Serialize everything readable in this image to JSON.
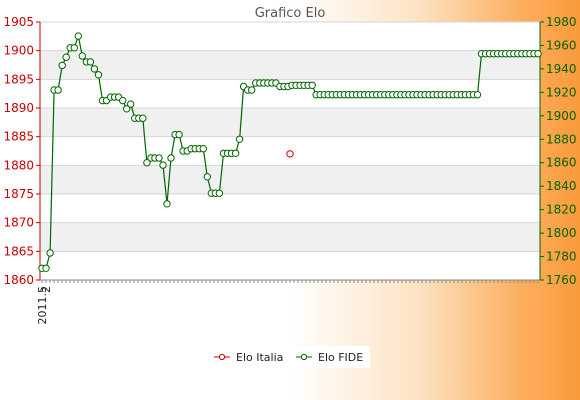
{
  "chart_data": {
    "type": "line",
    "title": "Grafico Elo",
    "y_left": {
      "min": 1860,
      "max": 1905,
      "ticks": [
        1860,
        1865,
        1870,
        1875,
        1880,
        1885,
        1890,
        1895,
        1900,
        1905
      ]
    },
    "y_right": {
      "min": 1760,
      "max": 1980,
      "ticks": [
        1760,
        1780,
        1800,
        1820,
        1840,
        1860,
        1880,
        1900,
        1920,
        1940,
        1960,
        1980
      ]
    },
    "grid": true,
    "x_tick_count": 125,
    "x_labels_visible": [
      "2011.5",
      "2"
    ],
    "legend_position": "bottom",
    "series": [
      {
        "name": "Elo Italia",
        "axis": "left",
        "color": "#cc0000",
        "values": [
          1882
        ]
      },
      {
        "name": "Elo FIDE",
        "axis": "right",
        "color": "#006600",
        "values": [
          1770,
          1770,
          1783,
          1922,
          1922,
          1943,
          1950,
          1958,
          1958,
          1968,
          1951,
          1946,
          1946,
          1940,
          1935,
          1913,
          1913,
          1916,
          1916,
          1916,
          1913,
          1906,
          1910,
          1898,
          1898,
          1898,
          1860,
          1864,
          1864,
          1864,
          1858,
          1825,
          1864,
          1884,
          1884,
          1870,
          1870,
          1872,
          1872,
          1872,
          1872,
          1848,
          1834,
          1834,
          1834,
          1868,
          1868,
          1868,
          1868,
          1880,
          1925,
          1922,
          1922,
          1928,
          1928,
          1928,
          1928,
          1928,
          1928,
          1925,
          1925,
          1925,
          1926,
          1926,
          1926,
          1926,
          1926,
          1926,
          1918,
          1918,
          1918,
          1918,
          1918,
          1918,
          1918,
          1918,
          1918,
          1918,
          1918,
          1918,
          1918,
          1918,
          1918,
          1918,
          1918,
          1918,
          1918,
          1918,
          1918,
          1918,
          1918,
          1918,
          1918,
          1918,
          1918,
          1918,
          1918,
          1918,
          1918,
          1918,
          1918,
          1918,
          1918,
          1918,
          1918,
          1918,
          1918,
          1918,
          1918,
          1953,
          1953,
          1953,
          1953,
          1953,
          1953,
          1953,
          1953,
          1953,
          1953,
          1953,
          1953,
          1953,
          1953,
          1953
        ]
      }
    ]
  }
}
